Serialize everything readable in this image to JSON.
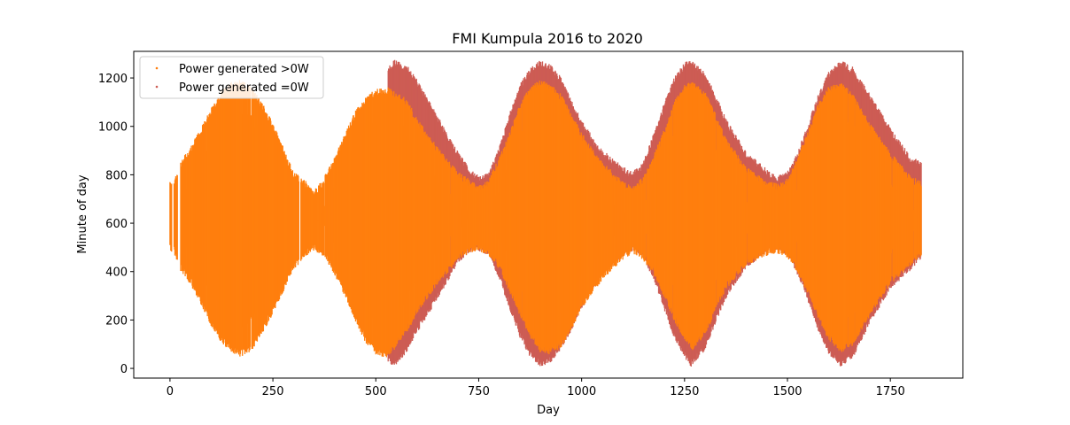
{
  "chart_data": {
    "type": "scatter",
    "title": "FMI Kumpula 2016 to 2020",
    "xlabel": "Day",
    "ylabel": "Minute of day",
    "xlim": [
      -88,
      1926
    ],
    "ylim": [
      -40,
      1310
    ],
    "xticks": [
      0,
      250,
      500,
      750,
      1000,
      1250,
      1500,
      1750
    ],
    "yticks": [
      0,
      200,
      400,
      600,
      800,
      1000,
      1200
    ],
    "grid": false,
    "legend_position": "top-left",
    "series": [
      {
        "name": "Power generated >0W",
        "color": "#ff7f0e",
        "description": "orange points forming the daylight (generating) envelope; y range per day is sunrise-to-sunset minute band",
        "envelope_days": [
          0,
          10,
          25,
          50,
          75,
          100,
          125,
          150,
          172,
          200,
          225,
          250,
          275,
          300,
          325,
          350,
          375,
          400,
          425,
          450,
          475,
          500,
          525,
          540,
          575,
          600,
          650,
          700,
          725,
          750,
          775,
          800,
          825,
          850,
          875,
          900,
          925,
          950,
          975,
          1000,
          1050,
          1100,
          1125,
          1150,
          1175,
          1200,
          1225,
          1250,
          1270,
          1300,
          1325,
          1350,
          1400,
          1450,
          1475,
          1500,
          1525,
          1550,
          1575,
          1600,
          1630,
          1660,
          1700,
          1750,
          1800,
          1825
        ],
        "envelope_lo": [
          500,
          490,
          420,
          360,
          280,
          190,
          120,
          80,
          60,
          90,
          160,
          240,
          330,
          420,
          470,
          500,
          470,
          400,
          310,
          210,
          120,
          70,
          60,
          80,
          160,
          240,
          360,
          460,
          490,
          500,
          480,
          420,
          330,
          230,
          140,
          80,
          70,
          100,
          170,
          260,
          380,
          460,
          490,
          460,
          400,
          310,
          210,
          130,
          90,
          150,
          250,
          340,
          440,
          480,
          490,
          470,
          410,
          320,
          220,
          130,
          80,
          110,
          230,
          360,
          440,
          480
        ],
        "envelope_hi": [
          760,
          770,
          840,
          900,
          980,
          1060,
          1130,
          1170,
          1180,
          1150,
          1080,
          1000,
          900,
          800,
          770,
          720,
          780,
          860,
          960,
          1050,
          1110,
          1140,
          1150,
          1140,
          1100,
          1020,
          900,
          800,
          770,
          740,
          770,
          860,
          960,
          1080,
          1150,
          1180,
          1160,
          1120,
          1040,
          960,
          840,
          760,
          740,
          780,
          870,
          970,
          1090,
          1160,
          1170,
          1130,
          1040,
          940,
          820,
          760,
          750,
          770,
          860,
          970,
          1080,
          1150,
          1170,
          1120,
          1000,
          880,
          780,
          760
        ]
      },
      {
        "name": "Power generated =0W",
        "color": "#cd5c54",
        "description": "muted red points visible from about day 500 onward, a wider sunrise-to-sunset envelope behind the orange points",
        "envelope_days": [
          530,
          545,
          575,
          600,
          650,
          700,
          725,
          750,
          775,
          800,
          825,
          850,
          875,
          900,
          925,
          950,
          975,
          1000,
          1050,
          1100,
          1125,
          1150,
          1175,
          1200,
          1225,
          1250,
          1265,
          1300,
          1325,
          1350,
          1400,
          1450,
          1475,
          1500,
          1525,
          1550,
          1575,
          1600,
          1630,
          1660,
          1700,
          1750,
          1800,
          1825
        ],
        "envelope_lo": [
          40,
          20,
          80,
          160,
          300,
          450,
          490,
          500,
          480,
          380,
          260,
          140,
          60,
          20,
          40,
          90,
          170,
          260,
          400,
          480,
          500,
          470,
          380,
          260,
          140,
          60,
          20,
          90,
          200,
          300,
          430,
          490,
          500,
          480,
          400,
          290,
          170,
          70,
          20,
          60,
          200,
          340,
          420,
          470
        ],
        "envelope_hi": [
          1230,
          1260,
          1240,
          1180,
          1030,
          880,
          820,
          780,
          800,
          900,
          1040,
          1160,
          1230,
          1260,
          1240,
          1190,
          1100,
          1010,
          890,
          820,
          800,
          840,
          960,
          1080,
          1190,
          1250,
          1260,
          1210,
          1120,
          1020,
          880,
          810,
          780,
          800,
          880,
          1000,
          1120,
          1210,
          1260,
          1230,
          1120,
          980,
          860,
          840
        ]
      }
    ]
  }
}
